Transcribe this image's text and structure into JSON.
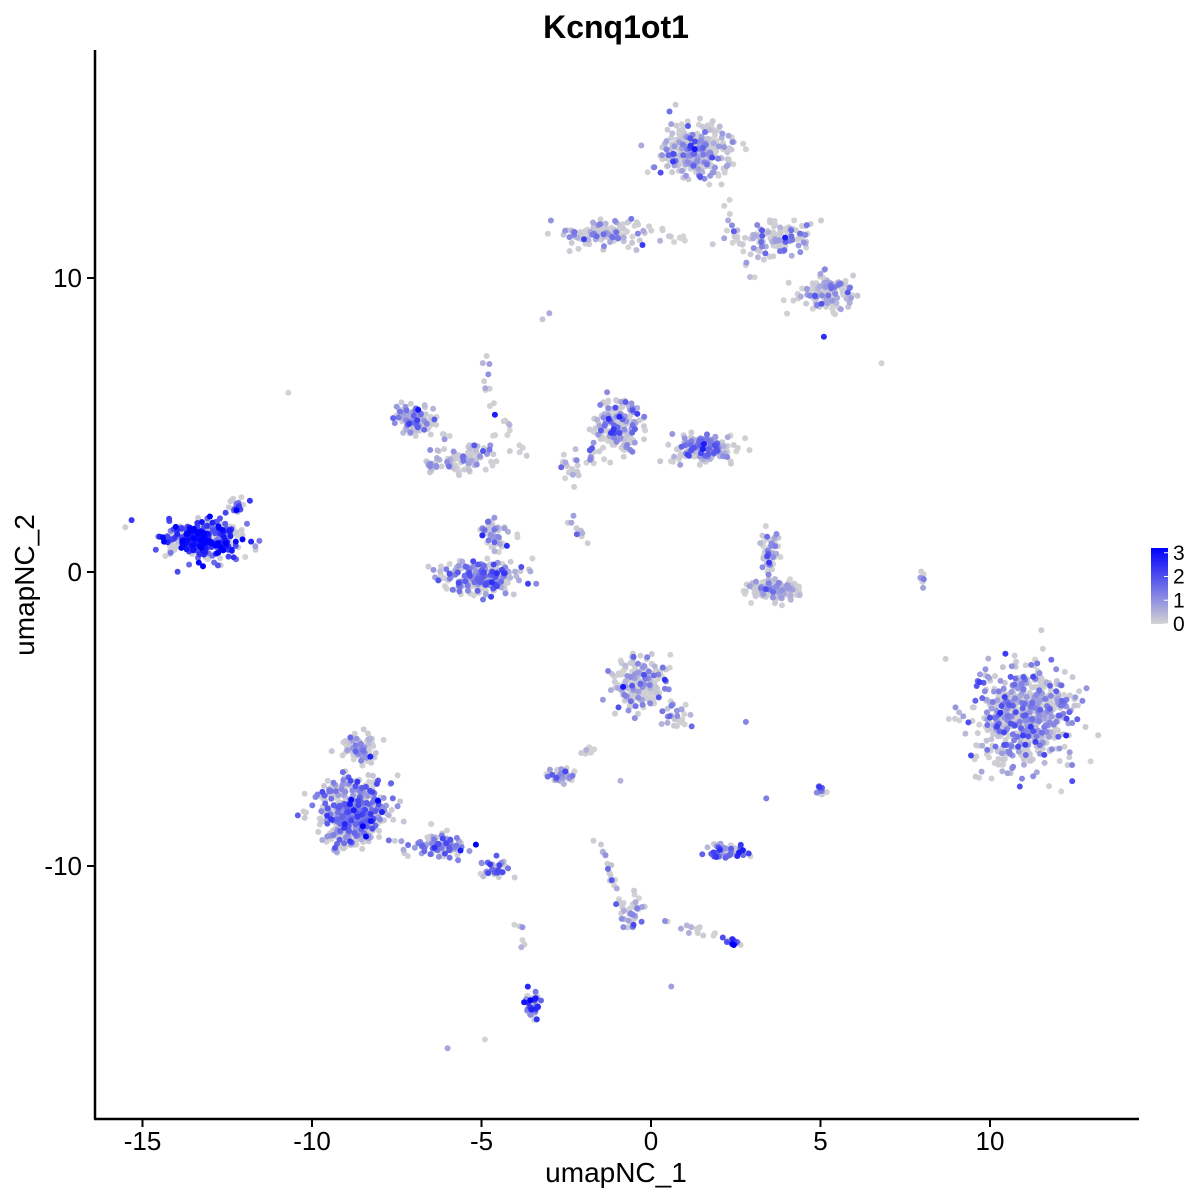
{
  "chart_data": {
    "type": "scatter",
    "title": "Kcnq1ot1",
    "xlabel": "umapNC_1",
    "ylabel": "umapNC_2",
    "xlim": [
      -16.3,
      14.5
    ],
    "ylim": [
      -17.6,
      17.6
    ],
    "x_ticks": [
      -15,
      -10,
      -5,
      0,
      5,
      10
    ],
    "y_ticks": [
      10,
      0,
      -10
    ],
    "x_tick_labels": [
      "-15",
      "-10",
      "-5",
      "0",
      "5",
      "10"
    ],
    "y_tick_labels": [
      "10",
      "0",
      "-10"
    ],
    "grid": false,
    "color_scale": {
      "low_color": "#d3d3d3",
      "high_color": "#0000ff",
      "range": [
        0,
        3.2
      ],
      "legend_ticks": [
        3,
        2,
        1,
        0
      ],
      "legend_tick_labels": [
        "3",
        "2",
        "1",
        "0"
      ],
      "legend_position": "right"
    },
    "clusters": [
      {
        "cx": -13.2,
        "cy": 1.1,
        "sx": 1.0,
        "sy": 0.55,
        "n": 420,
        "mean_expr": 2.3
      },
      {
        "cx": -12.2,
        "cy": 2.2,
        "sx": 0.35,
        "sy": 0.25,
        "n": 20,
        "mean_expr": 1.8
      },
      {
        "cx": -7.0,
        "cy": 5.2,
        "sx": 0.5,
        "sy": 0.5,
        "n": 120,
        "mean_expr": 0.7
      },
      {
        "cx": -5.7,
        "cy": 3.8,
        "sx": 0.9,
        "sy": 0.4,
        "n": 90,
        "mean_expr": 0.5
      },
      {
        "cx": -5.0,
        "cy": -0.2,
        "sx": 1.1,
        "sy": 0.5,
        "n": 260,
        "mean_expr": 1.1
      },
      {
        "cx": -4.6,
        "cy": 1.3,
        "sx": 0.45,
        "sy": 0.5,
        "n": 60,
        "mean_expr": 0.6
      },
      {
        "cx": -1.0,
        "cy": 5.0,
        "sx": 0.6,
        "sy": 0.8,
        "n": 180,
        "mean_expr": 0.9
      },
      {
        "cx": 1.6,
        "cy": 4.2,
        "sx": 0.9,
        "sy": 0.45,
        "n": 160,
        "mean_expr": 0.8
      },
      {
        "cx": 1.3,
        "cy": 14.3,
        "sx": 0.9,
        "sy": 0.8,
        "n": 330,
        "mean_expr": 0.6
      },
      {
        "cx": -1.6,
        "cy": 11.5,
        "sx": 1.2,
        "sy": 0.35,
        "n": 110,
        "mean_expr": 0.6
      },
      {
        "cx": 3.7,
        "cy": 11.3,
        "sx": 1.0,
        "sy": 0.6,
        "n": 120,
        "mean_expr": 0.7
      },
      {
        "cx": 5.2,
        "cy": 9.5,
        "sx": 0.7,
        "sy": 0.5,
        "n": 140,
        "mean_expr": 0.6
      },
      {
        "cx": 3.6,
        "cy": -0.6,
        "sx": 0.7,
        "sy": 0.3,
        "n": 180,
        "mean_expr": 0.2
      },
      {
        "cx": 3.5,
        "cy": 0.6,
        "sx": 0.3,
        "sy": 0.6,
        "n": 50,
        "mean_expr": 0.9
      },
      {
        "cx": -0.4,
        "cy": -3.8,
        "sx": 0.7,
        "sy": 0.8,
        "n": 180,
        "mean_expr": 0.6
      },
      {
        "cx": 0.8,
        "cy": -4.9,
        "sx": 0.35,
        "sy": 0.45,
        "n": 25,
        "mean_expr": 0.5
      },
      {
        "cx": 11.0,
        "cy": -4.8,
        "sx": 1.3,
        "sy": 1.55,
        "n": 650,
        "mean_expr": 0.8
      },
      {
        "cx": -8.8,
        "cy": -8.2,
        "sx": 0.9,
        "sy": 1.0,
        "n": 560,
        "mean_expr": 1.1
      },
      {
        "cx": -8.6,
        "cy": -6.0,
        "sx": 0.5,
        "sy": 0.5,
        "n": 90,
        "mean_expr": 0.6
      },
      {
        "cx": -6.3,
        "cy": -9.3,
        "sx": 0.8,
        "sy": 0.35,
        "n": 90,
        "mean_expr": 1.3
      },
      {
        "cx": -4.6,
        "cy": -10.1,
        "sx": 0.4,
        "sy": 0.25,
        "n": 40,
        "mean_expr": 1.5
      },
      {
        "cx": -2.6,
        "cy": -6.9,
        "sx": 0.35,
        "sy": 0.25,
        "n": 40,
        "mean_expr": 0.8
      },
      {
        "cx": 2.3,
        "cy": -9.5,
        "sx": 0.5,
        "sy": 0.22,
        "n": 60,
        "mean_expr": 1.5
      },
      {
        "cx": 2.4,
        "cy": -12.6,
        "sx": 0.2,
        "sy": 0.15,
        "n": 20,
        "mean_expr": 2.2
      },
      {
        "cx": -3.5,
        "cy": -14.8,
        "sx": 0.2,
        "sy": 0.4,
        "n": 45,
        "mean_expr": 1.8
      },
      {
        "cx": 5.0,
        "cy": -7.4,
        "sx": 0.12,
        "sy": 0.2,
        "n": 15,
        "mean_expr": 1.6
      },
      {
        "cx": -0.5,
        "cy": -11.5,
        "sx": 0.3,
        "sy": 0.5,
        "n": 30,
        "mean_expr": 0.7
      },
      {
        "cx": 8.0,
        "cy": -0.2,
        "sx": 0.08,
        "sy": 0.3,
        "n": 8,
        "mean_expr": 0.5
      },
      {
        "cx": -2.4,
        "cy": 3.6,
        "sx": 0.3,
        "sy": 0.5,
        "n": 18,
        "mean_expr": 0.6
      }
    ],
    "trajectories": [
      {
        "from": [
          -1.0,
          12.0
        ],
        "to": [
          1.1,
          11.3
        ],
        "n": 20,
        "mean_expr": 0.5
      },
      {
        "from": [
          2.1,
          12.9
        ],
        "to": [
          2.9,
          10.0
        ],
        "n": 16,
        "mean_expr": 0.5
      },
      {
        "from": [
          -7.2,
          5.0
        ],
        "to": [
          -4.7,
          4.1
        ],
        "n": 18,
        "mean_expr": 0.5
      },
      {
        "from": [
          -4.9,
          7.4
        ],
        "to": [
          -4.6,
          4.3
        ],
        "n": 14,
        "mean_expr": 0.5
      },
      {
        "from": [
          -4.3,
          5.2
        ],
        "to": [
          -3.7,
          3.9
        ],
        "n": 10,
        "mean_expr": 0.5
      },
      {
        "from": [
          -2.3,
          2.8
        ],
        "to": [
          -1.2,
          4.9
        ],
        "n": 14,
        "mean_expr": 0.6
      },
      {
        "from": [
          -2.5,
          1.9
        ],
        "to": [
          -1.6,
          0.7
        ],
        "n": 10,
        "mean_expr": 0.7
      },
      {
        "from": [
          -1.5,
          -9.2
        ],
        "to": [
          -0.7,
          -12.2
        ],
        "n": 24,
        "mean_expr": 0.8
      },
      {
        "from": [
          0.4,
          -11.9
        ],
        "to": [
          2.3,
          -12.5
        ],
        "n": 14,
        "mean_expr": 0.7
      },
      {
        "from": [
          -4.0,
          -11.9
        ],
        "to": [
          -3.7,
          -13.1
        ],
        "n": 6,
        "mean_expr": 0.8
      },
      {
        "from": [
          -2.0,
          -6.2
        ],
        "to": [
          -1.5,
          -5.8
        ],
        "n": 6,
        "mean_expr": 0.6
      }
    ],
    "isolated_points": [
      {
        "x": -10.7,
        "y": 6.1,
        "expr": 0
      },
      {
        "x": 6.8,
        "y": 7.1,
        "expr": 0
      },
      {
        "x": 5.1,
        "y": 8.0,
        "expr": 2.5
      },
      {
        "x": -3.0,
        "y": 8.8,
        "expr": 0.6
      },
      {
        "x": -3.2,
        "y": 8.6,
        "expr": 0.2
      },
      {
        "x": -6.0,
        "y": -16.2,
        "expr": 0.7
      },
      {
        "x": -4.9,
        "y": -15.9,
        "expr": 0
      },
      {
        "x": 0.6,
        "y": -14.1,
        "expr": 0.8
      },
      {
        "x": 3.4,
        "y": -7.7,
        "expr": 1.3
      },
      {
        "x": 2.8,
        "y": -5.1,
        "expr": 1.2
      },
      {
        "x": -0.9,
        "y": -7.1,
        "expr": 0.5
      }
    ]
  }
}
